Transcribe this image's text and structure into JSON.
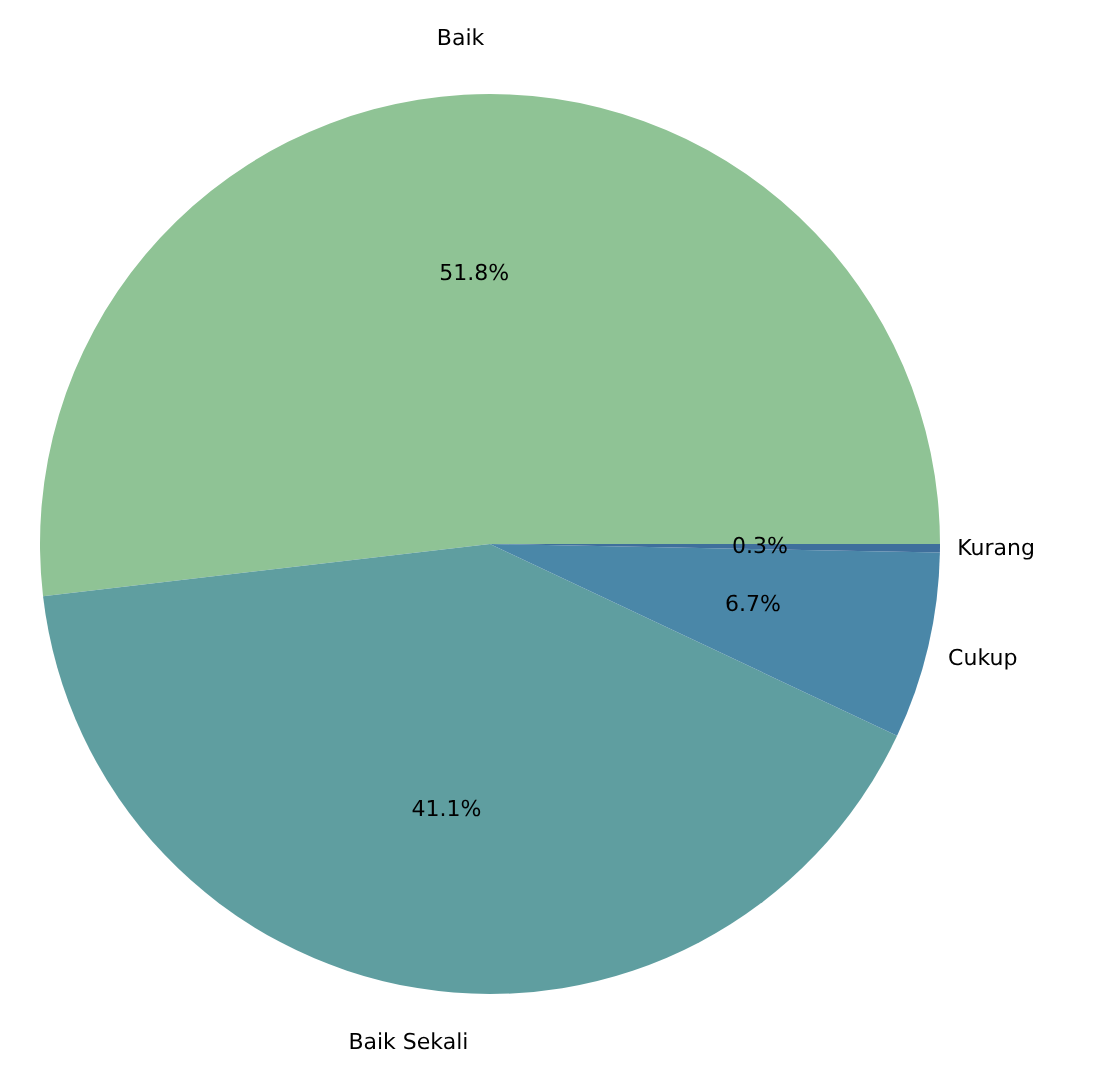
{
  "chart_data": {
    "type": "pie",
    "categories": [
      "Baik",
      "Baik Sekali",
      "Cukup",
      "Kurang"
    ],
    "values": [
      51.8,
      41.1,
      6.7,
      0.3
    ],
    "colors": [
      "#8fc395",
      "#5f9ea0",
      "#4a87a8",
      "#3f6f9c"
    ],
    "value_labels": [
      "51.8%",
      "41.1%",
      "6.7%",
      "0.3%"
    ]
  }
}
